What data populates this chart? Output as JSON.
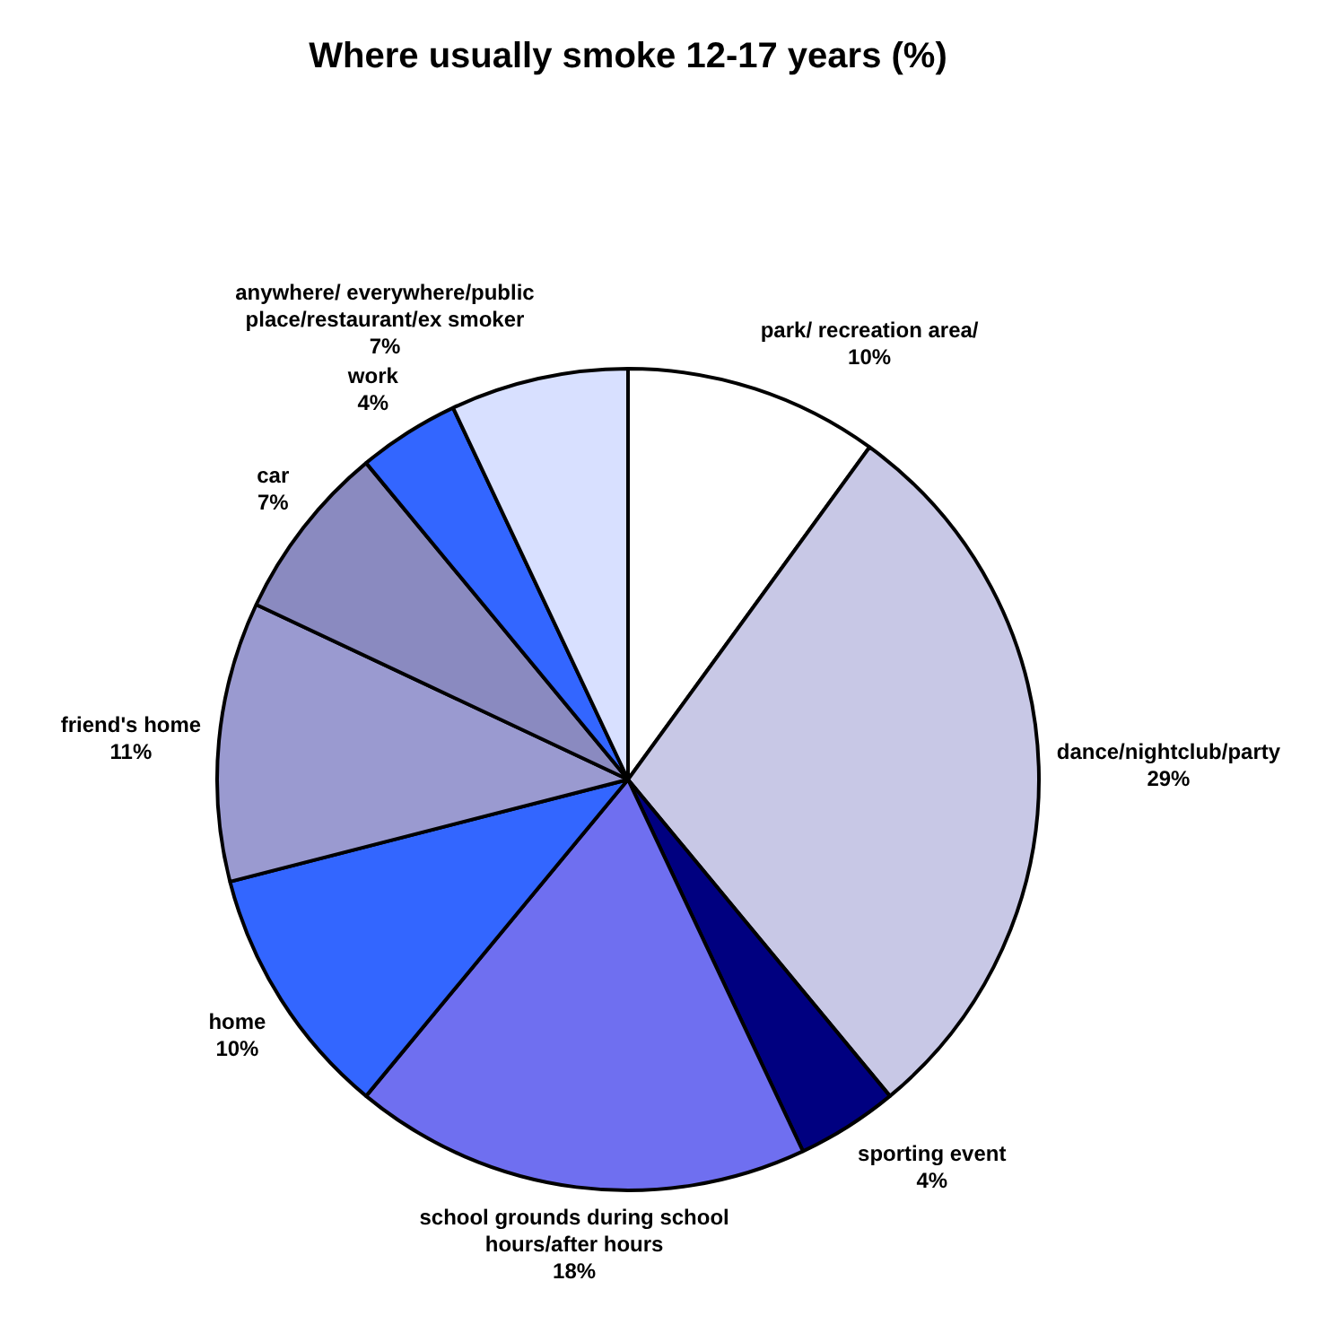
{
  "chart_data": {
    "type": "pie",
    "title": "Where usually smoke 12-17 years (%)",
    "categories": [
      "park/ recreation area/",
      "dance/nightclub/party",
      "sporting event",
      "school grounds during school hours/after hours",
      "home",
      "friend's home",
      "car",
      "work",
      "anywhere/ everywhere/public place/restaurant/ex smoker"
    ],
    "values": [
      10,
      29,
      4,
      18,
      10,
      11,
      7,
      4,
      7
    ],
    "colors": [
      "#ffffff",
      "#c8c8e6",
      "#000080",
      "#6f6ff0",
      "#3366ff",
      "#9a9ad0",
      "#8a8ac0",
      "#3366ff",
      "#d8e0ff"
    ],
    "value_labels": [
      "10%",
      "29%",
      "4%",
      "18%",
      "10%",
      "11%",
      "7%",
      "4%",
      "7%"
    ],
    "legend": false
  }
}
